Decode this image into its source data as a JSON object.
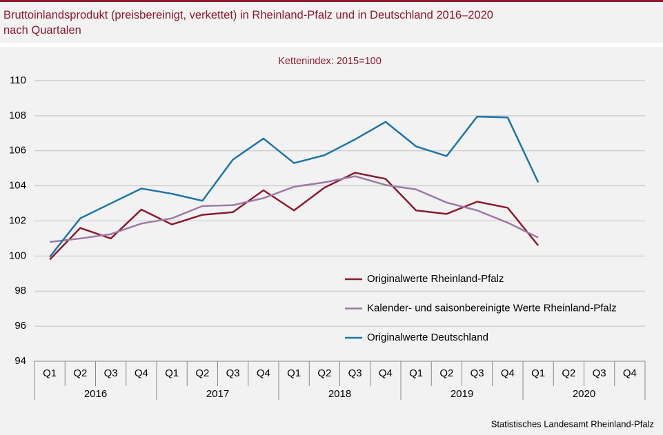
{
  "chart_data": {
    "type": "line",
    "title": [
      "Bruttoinlandsprodukt (preisbereinigt, verkettet) in Rheinland-Pfalz und in Deutschland 2016–2020",
      "nach Quartalen"
    ],
    "subtitle": "Kettenindex:  2015=100",
    "source": "Statistisches Landesamt Rheinland-Pfalz",
    "categories": [
      "Q1",
      "Q2",
      "Q3",
      "Q4",
      "Q1",
      "Q2",
      "Q3",
      "Q4",
      "Q1",
      "Q2",
      "Q3",
      "Q4",
      "Q1",
      "Q2",
      "Q3",
      "Q4",
      "Q1",
      "Q2",
      "Q3",
      "Q4"
    ],
    "years": [
      "2016",
      "2017",
      "2018",
      "2019",
      "2020"
    ],
    "ylim": [
      94,
      110
    ],
    "yticks": [
      94,
      96,
      98,
      100,
      102,
      104,
      106,
      108,
      110
    ],
    "grid": true,
    "series": [
      {
        "name": "Originalwerte Rheinland-Pfalz",
        "color": "#8b1a2e",
        "values": [
          99.8,
          101.6,
          101.0,
          102.65,
          101.8,
          102.35,
          102.5,
          103.75,
          102.6,
          103.9,
          104.75,
          104.4,
          102.6,
          102.4,
          103.1,
          102.75,
          100.6,
          null,
          null,
          null
        ]
      },
      {
        "name": "Kalender- und saisonbereinigte Werte Rheinland-Pfalz",
        "color": "#9b7aa3",
        "values": [
          100.8,
          101.0,
          101.25,
          101.85,
          102.15,
          102.85,
          102.9,
          103.3,
          103.95,
          104.2,
          104.55,
          104.05,
          103.8,
          103.05,
          102.6,
          101.9,
          101.05,
          null,
          null,
          null
        ]
      },
      {
        "name": "Originalwerte Deutschland",
        "color": "#1a75a8",
        "values": [
          99.95,
          102.15,
          103.0,
          103.85,
          103.55,
          103.15,
          105.5,
          106.7,
          105.3,
          105.75,
          106.65,
          107.65,
          106.25,
          105.7,
          107.95,
          107.9,
          104.2,
          null,
          null,
          null
        ]
      }
    ]
  }
}
